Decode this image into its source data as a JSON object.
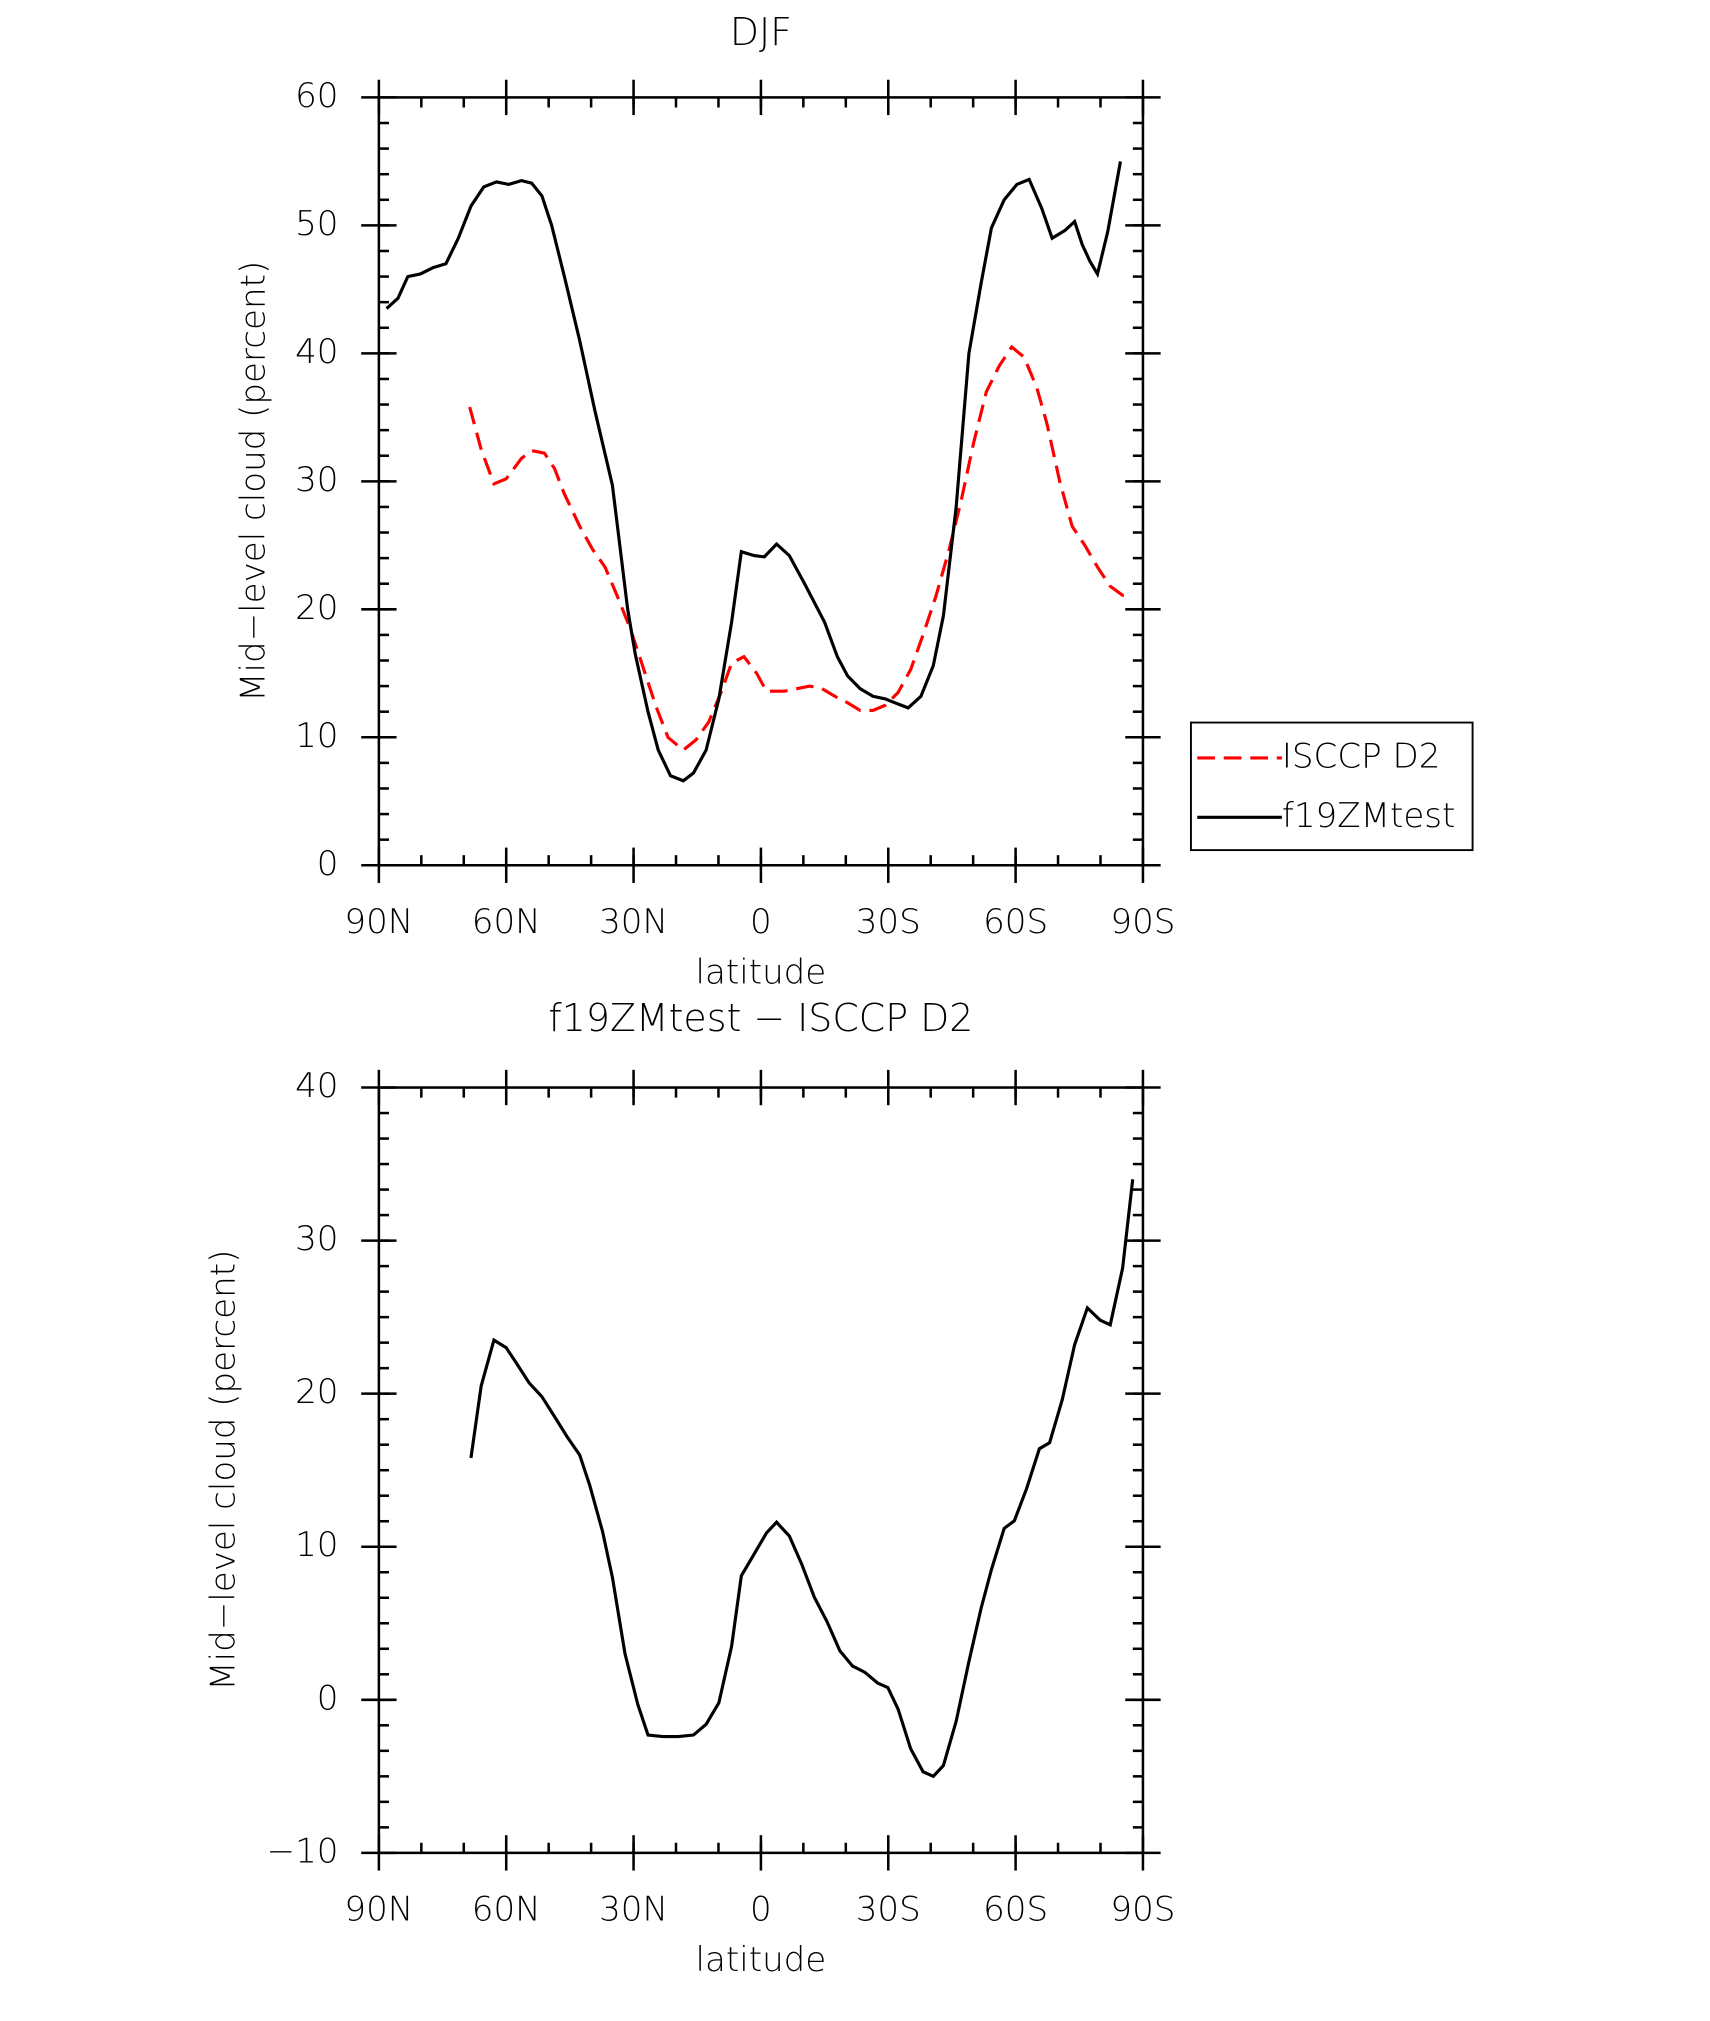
{
  "chart_data": [
    {
      "type": "line",
      "title": "DJF",
      "xlabel": "latitude",
      "ylabel": "Mid−level cloud (percent)",
      "xlim": [
        90,
        -90
      ],
      "xticks": [
        {
          "value": 90,
          "label": "90N"
        },
        {
          "value": 60,
          "label": "60N"
        },
        {
          "value": 30,
          "label": "30N"
        },
        0,
        {
          "value": -30,
          "label": "30S"
        },
        {
          "value": -60,
          "label": "60S"
        },
        {
          "value": -90,
          "label": "90S"
        }
      ],
      "ylim": [
        0,
        60
      ],
      "yticks": [
        0,
        10,
        20,
        30,
        40,
        50,
        60
      ],
      "legend": "right",
      "series": [
        {
          "name": "ISCCP D2",
          "color": "#ff0000",
          "style": "dashed",
          "x": [
            68.6,
            65.9,
            62.9,
            60.0,
            56.4,
            54.0,
            51.0,
            48.6,
            46.3,
            42.7,
            39.7,
            36.7,
            33.8,
            30.8,
            27.8,
            24.8,
            21.9,
            18.3,
            15.3,
            12.3,
            9.4,
            6.9,
            4.0,
            1.0,
            -1.3,
            -5.5,
            -11.5,
            -14.4,
            -17.4,
            -20.4,
            -23.4,
            -26.4,
            -29.3,
            -32.3,
            -35.3,
            -38.2,
            -41.2,
            -44.2,
            -47.2,
            -50.1,
            -53.1,
            -56.1,
            -59.1,
            -62.0,
            -65.0,
            -67.4,
            -70.4,
            -73.3,
            -76.3,
            -79.3,
            -82.3,
            -85.2,
            -87.6
          ],
          "values": [
            35.8,
            32.5,
            29.8,
            30.2,
            31.8,
            32.4,
            32.2,
            31,
            29,
            26.5,
            24.7,
            23.3,
            21,
            18.5,
            15.5,
            12.5,
            10,
            9,
            9.8,
            11.2,
            13.5,
            15.8,
            16.3,
            15,
            13.6,
            13.6,
            14,
            13.8,
            13.2,
            12.7,
            12.1,
            12.1,
            12.5,
            13.5,
            15.3,
            18,
            21,
            24.5,
            28.5,
            33,
            37,
            39,
            40.5,
            39.7,
            37.3,
            34.5,
            30,
            26.5,
            25,
            23.3,
            21.8,
            21.1,
            21.1
          ]
        },
        {
          "name": "f19ZMtest",
          "color": "#000000",
          "style": "solid",
          "x": [
            88.2,
            85.5,
            83.2,
            80.2,
            77.2,
            74.2,
            71.3,
            68.3,
            65.3,
            62.3,
            59.4,
            56.4,
            54.0,
            51.6,
            49.3,
            46.3,
            42.7,
            39.1,
            35.0,
            31.4,
            29.6,
            26.6,
            24.2,
            21.3,
            18.3,
            15.9,
            12.9,
            9.9,
            6.9,
            4.6,
            1.6,
            -0.8,
            -3.7,
            -6.7,
            -10.3,
            -15.0,
            -18.0,
            -20.4,
            -23.4,
            -26.4,
            -29.3,
            -32.3,
            -34.7,
            -37.7,
            -40.6,
            -43.0,
            -46.0,
            -49.0,
            -51.9,
            -54.3,
            -57.3,
            -60.3,
            -63.2,
            -66.2,
            -68.6,
            -71.6,
            -73.9,
            -75.7,
            -77.5,
            -79.3,
            -81.7,
            -84.7
          ],
          "values": [
            43.5,
            44.3,
            46,
            46.2,
            46.7,
            47,
            49,
            51.5,
            53,
            53.4,
            53.2,
            53.5,
            53.3,
            52.3,
            50,
            46,
            41,
            35.5,
            29.7,
            20,
            16.5,
            12,
            9,
            7,
            6.6,
            7.2,
            9,
            13,
            19,
            24.5,
            24.2,
            24.1,
            25.1,
            24.2,
            22,
            19,
            16.3,
            14.8,
            13.8,
            13.2,
            13,
            12.6,
            12.3,
            13.2,
            15.6,
            19.5,
            28,
            40,
            45.5,
            49.8,
            52,
            53.2,
            53.6,
            51.3,
            49,
            49.6,
            50.3,
            48.5,
            47.2,
            46.2,
            49.5,
            55
          ]
        }
      ]
    },
    {
      "type": "line",
      "title": "f19ZMtest − ISCCP D2",
      "xlabel": "latitude",
      "ylabel": "Mid−level cloud (percent)",
      "xlim": [
        90,
        -90
      ],
      "xticks": [
        {
          "value": 90,
          "label": "90N"
        },
        {
          "value": 60,
          "label": "60N"
        },
        {
          "value": 30,
          "label": "30N"
        },
        0,
        {
          "value": -30,
          "label": "30S"
        },
        {
          "value": -60,
          "label": "60S"
        },
        {
          "value": -90,
          "label": "90S"
        }
      ],
      "ylim": [
        -10,
        40
      ],
      "yticks": [
        {
          "value": -10,
          "label": "−10"
        },
        0,
        10,
        20,
        30,
        40
      ],
      "series": [
        {
          "color": "#000000",
          "style": "solid",
          "x": [
            68.3,
            65.9,
            62.9,
            60.0,
            57.6,
            54.6,
            51.6,
            48.6,
            45.7,
            42.7,
            40.3,
            37.3,
            35.0,
            32.0,
            29.0,
            26.6,
            23.1,
            19.5,
            15.9,
            12.9,
            9.9,
            6.9,
            4.6,
            1.0,
            -1.3,
            -3.7,
            -6.7,
            -9.7,
            -12.6,
            -15.6,
            -18.6,
            -21.6,
            -24.5,
            -27.5,
            -29.9,
            -32.3,
            -35.3,
            -38.2,
            -40.6,
            -43.0,
            -46.0,
            -49.0,
            -51.9,
            -54.3,
            -57.3,
            -59.7,
            -62.6,
            -65.6,
            -68.0,
            -71.0,
            -73.9,
            -76.9,
            -79.9,
            -82.3,
            -85.2,
            -87.6
          ],
          "values": [
            15.8,
            20.5,
            23.5,
            23,
            22,
            20.7,
            19.8,
            18.5,
            17.2,
            16,
            14,
            11,
            8,
            3,
            -0.3,
            -2.3,
            -2.4,
            -2.4,
            -2.3,
            -1.6,
            -0.2,
            3.5,
            8.1,
            9.8,
            10.9,
            11.6,
            10.7,
            8.8,
            6.7,
            5.1,
            3.2,
            2.2,
            1.8,
            1.1,
            0.8,
            -0.6,
            -3.2,
            -4.7,
            -5,
            -4.3,
            -1.4,
            2.5,
            6,
            8.5,
            11.2,
            11.7,
            13.8,
            16.4,
            16.8,
            19.6,
            23.2,
            25.6,
            24.8,
            24.5,
            28.2,
            34
          ]
        }
      ]
    }
  ]
}
